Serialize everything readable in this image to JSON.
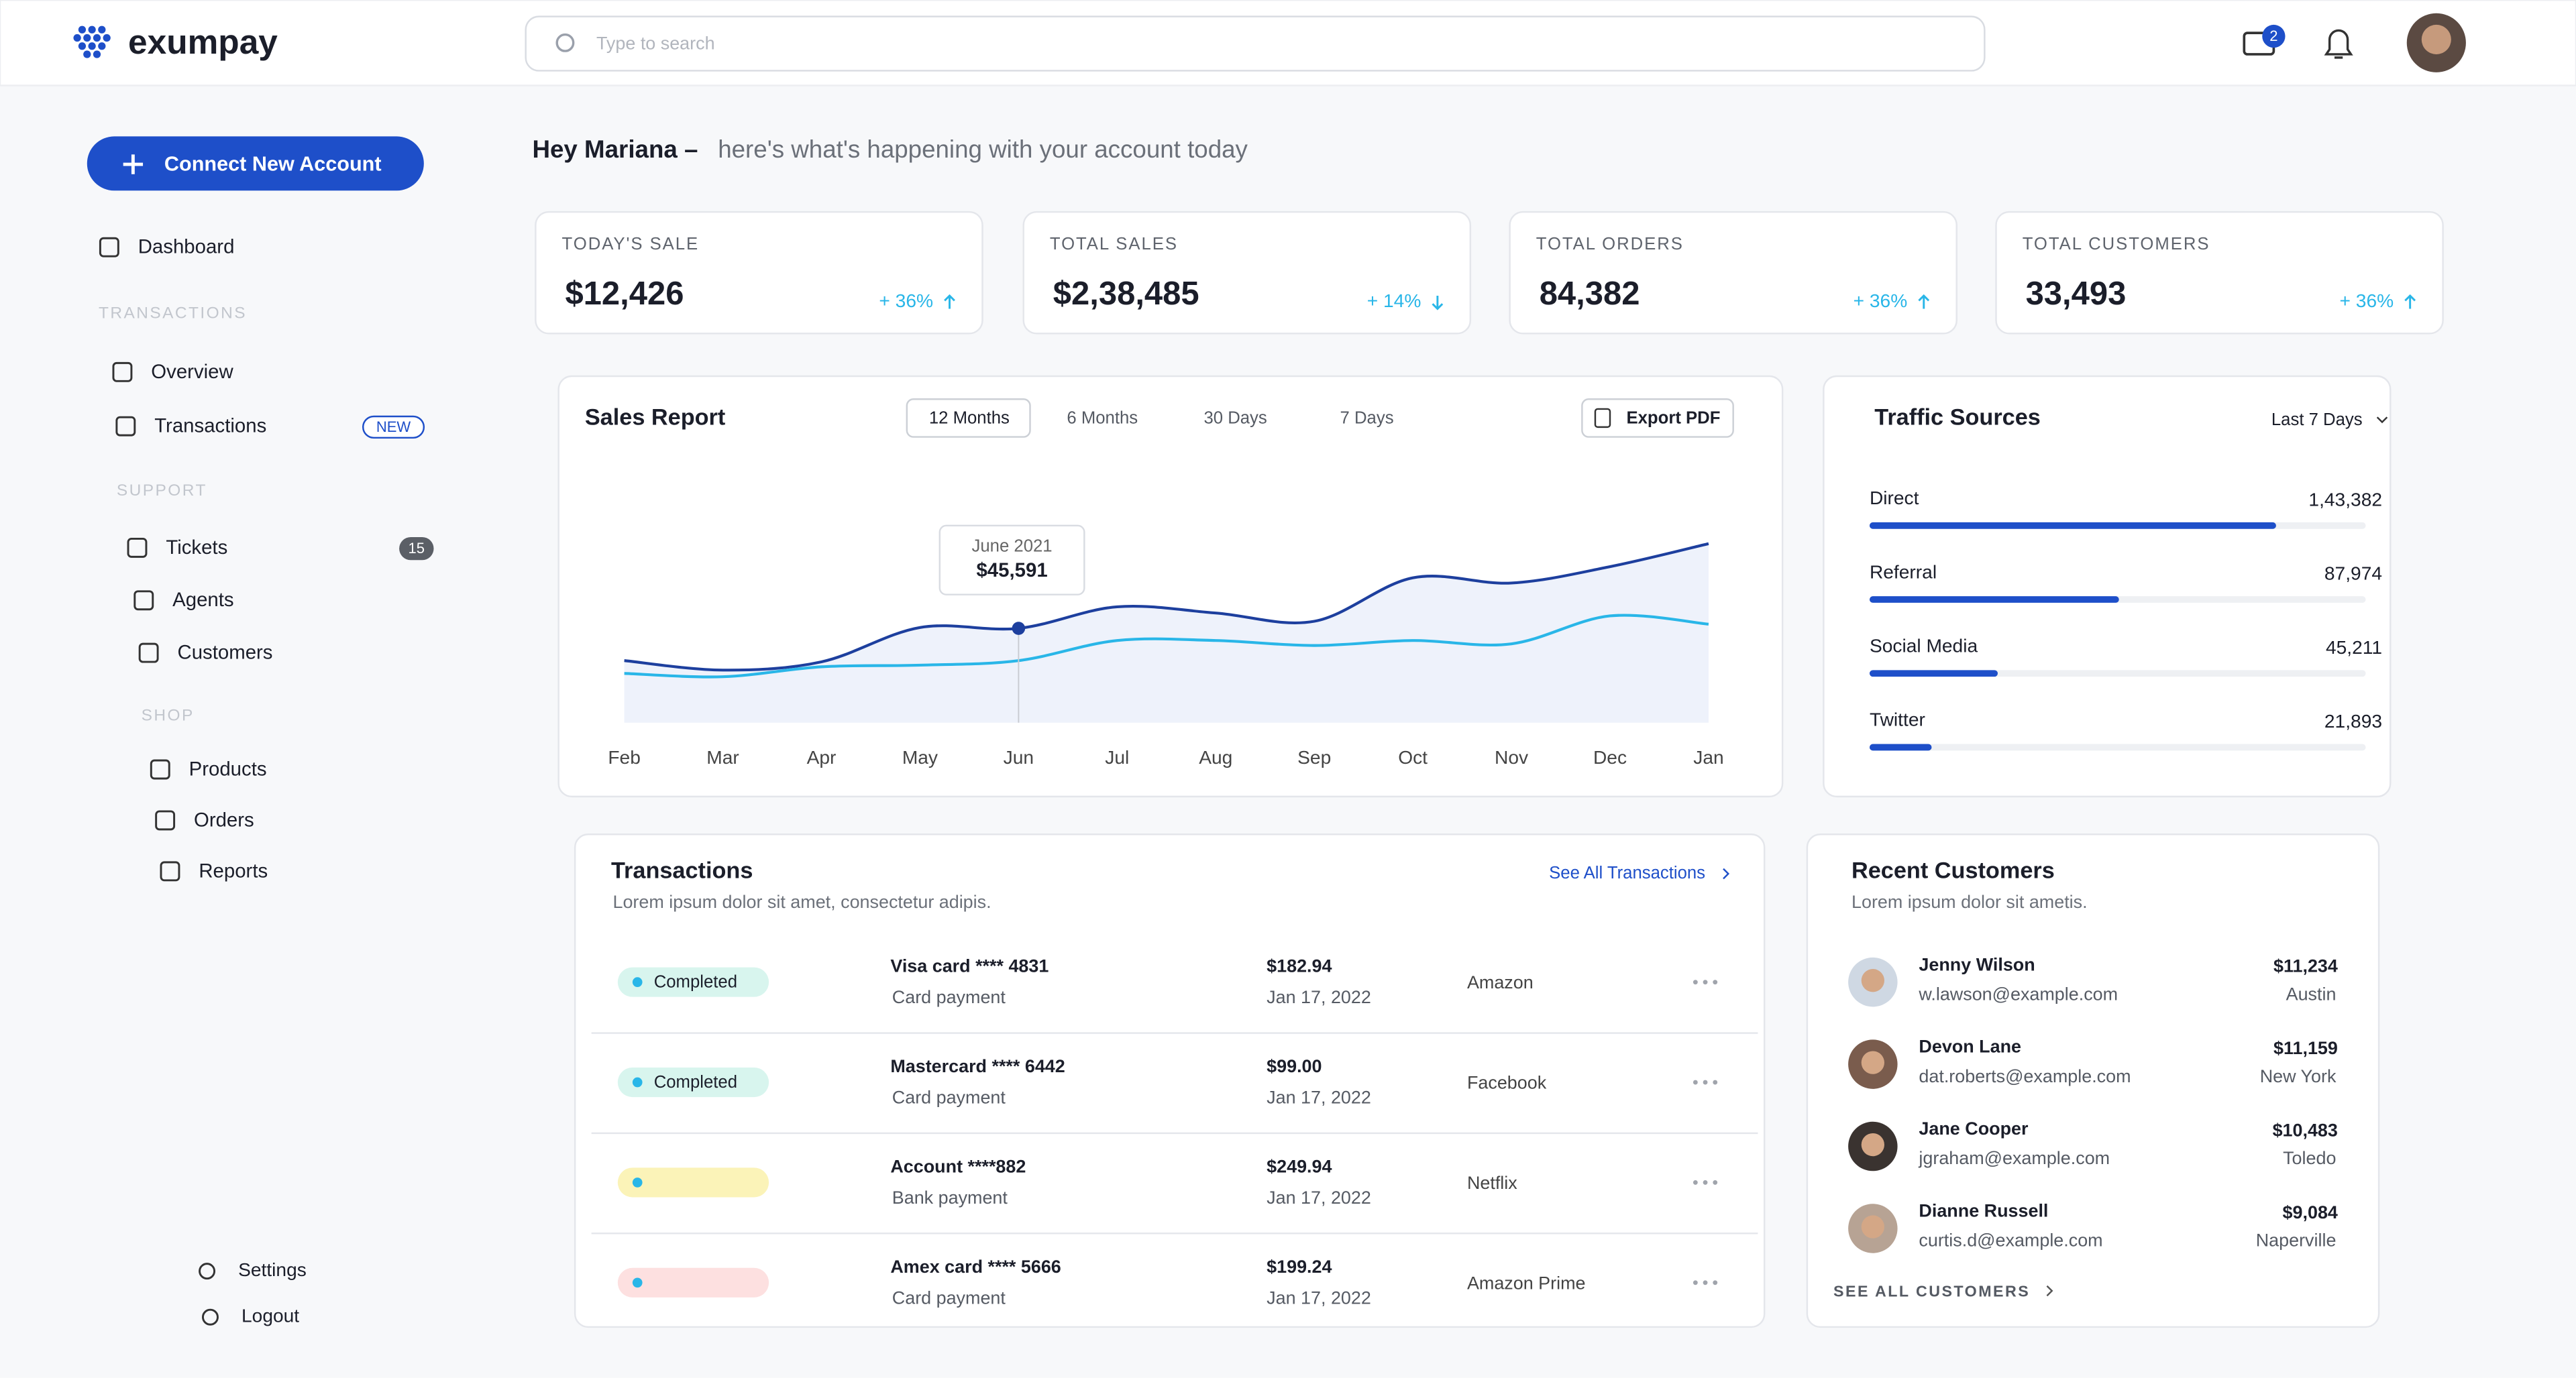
{
  "header": {
    "logo": "exumpay",
    "search_placeholder": "Type to search",
    "mail_badge": "2"
  },
  "sidebar": {
    "button": "Connect New Account",
    "items": [
      {
        "label": "Dashboard"
      },
      {
        "section": "TRANSACTIONS"
      },
      {
        "label": "Overview"
      },
      {
        "label": "Transactions",
        "badge": "NEW"
      },
      {
        "section": "SUPPORT"
      },
      {
        "label": "Tickets",
        "badge": "15"
      },
      {
        "label": "Agents"
      },
      {
        "label": "Customers"
      },
      {
        "section": "SHOP"
      },
      {
        "label": "Products"
      },
      {
        "label": "Orders"
      },
      {
        "label": "Reports"
      }
    ],
    "bottom": [
      "Settings",
      "Logout"
    ]
  },
  "greeting": {
    "name": "Hey Mariana –",
    "text": "here's what's happening with your account today"
  },
  "stats": [
    {
      "label": "TODAY'S SALE",
      "value": "$12,426",
      "change": "+ 36%",
      "trend": "up"
    },
    {
      "label": "TOTAL SALES",
      "value": "$2,38,485",
      "change": "+ 14%",
      "trend": "down"
    },
    {
      "label": "TOTAL ORDERS",
      "value": "84,382",
      "change": "+ 36%",
      "trend": "up"
    },
    {
      "label": "TOTAL CUSTOMERS",
      "value": "33,493",
      "change": "+ 36%",
      "trend": "up"
    }
  ],
  "sales_report": {
    "title": "Sales Report",
    "tabs": [
      "12 Months",
      "6 Months",
      "30 Days",
      "7 Days"
    ],
    "export": "Export PDF",
    "tooltip": {
      "label": "June 2021",
      "value": "$45,591"
    },
    "chart": {
      "type": "line",
      "categories": [
        "Feb",
        "Mar",
        "Apr",
        "May",
        "Jun",
        "Jul",
        "Aug",
        "Sep",
        "Oct",
        "Nov",
        "Dec",
        "Jan"
      ],
      "ylim": [
        0,
        100000
      ],
      "series": [
        {
          "color": "#1d3f9e",
          "values": [
            30000,
            25400,
            29400,
            46000,
            45591,
            56000,
            53000,
            49000,
            70000,
            67500,
            75400,
            86500
          ]
        },
        {
          "color": "#29b6e8",
          "values": [
            23800,
            22200,
            27000,
            27800,
            30000,
            39700,
            39700,
            37300,
            39700,
            38100,
            51600,
            47600
          ]
        }
      ]
    }
  },
  "traffic": {
    "title": "Traffic Sources",
    "period": "Last 7 Days",
    "chart": {
      "type": "bar",
      "categories": [
        "Direct",
        "Referral",
        "Social Media",
        "Twitter"
      ],
      "values": [
        143382,
        87974,
        45211,
        21893
      ],
      "value_labels": [
        "1,43,382",
        "87,974",
        "45,211",
        "21,893"
      ],
      "xlim": [
        0,
        175000
      ],
      "color": "#1e4fc9"
    }
  },
  "transactions": {
    "title": "Transactions",
    "subtitle": "Lorem ipsum dolor sit amet, consectetur adipis.",
    "link": "See All Transactions",
    "rows": [
      {
        "status": "Completed",
        "status_color": "#d8f5ee",
        "card": "Visa card **** 4831",
        "method": "Card payment",
        "amount": "$182.94",
        "date": "Jan 17, 2022",
        "merchant": "Amazon"
      },
      {
        "status": "Completed",
        "status_color": "#d8f5ee",
        "card": "Mastercard **** 6442",
        "method": "Card payment",
        "amount": "$99.00",
        "date": "Jan 17, 2022",
        "merchant": "Facebook"
      },
      {
        "status_color": "#fbf3b8",
        "card": "Account ****882",
        "method": "Bank payment",
        "amount": "$249.94",
        "date": "Jan 17, 2022",
        "merchant": "Netflix"
      },
      {
        "status_color": "#fde0e0",
        "card": "Amex card **** 5666",
        "method": "Card payment",
        "amount": "$199.24",
        "date": "Jan 17, 2022",
        "merchant": "Amazon Prime"
      }
    ]
  },
  "recent_customers": {
    "title": "Recent Customers",
    "subtitle": "Lorem ipsum dolor sit ametis.",
    "link": "SEE ALL CUSTOMERS",
    "rows": [
      {
        "name": "Jenny Wilson",
        "email": "w.lawson@example.com",
        "amount": "$11,234",
        "city": "Austin"
      },
      {
        "name": "Devon Lane",
        "email": "dat.roberts@example.com",
        "amount": "$11,159",
        "city": "New York"
      },
      {
        "name": "Jane Cooper",
        "email": "jgraham@example.com",
        "amount": "$10,483",
        "city": "Toledo"
      },
      {
        "name": "Dianne Russell",
        "email": "curtis.d@example.com",
        "amount": "$9,084",
        "city": "Naperville"
      }
    ]
  }
}
